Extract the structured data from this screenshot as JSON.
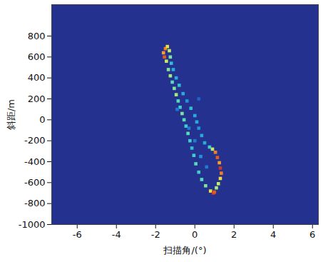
{
  "chart_data": {
    "type": "heatmap",
    "x_label": "扫描角/(°)",
    "y_label": "斜距/m",
    "xlim": [
      -7.3,
      6.3
    ],
    "ylim": [
      -1000,
      1100
    ],
    "xticks": [
      -6,
      -4,
      -2,
      0,
      2,
      4,
      6
    ],
    "yticks": [
      -1000,
      -800,
      -600,
      -400,
      -200,
      0,
      200,
      400,
      600,
      800
    ],
    "zlim": [
      0,
      1
    ],
    "grid": false,
    "cells": [
      {
        "x": -1.6,
        "y": 640,
        "z": 0.8
      },
      {
        "x": -1.55,
        "y": 600,
        "z": 0.9
      },
      {
        "x": -1.45,
        "y": 560,
        "z": 0.6
      },
      {
        "x": -1.35,
        "y": 480,
        "z": 0.5
      },
      {
        "x": -1.25,
        "y": 420,
        "z": 0.55
      },
      {
        "x": -1.15,
        "y": 360,
        "z": 0.45
      },
      {
        "x": -1.05,
        "y": 300,
        "z": 0.5
      },
      {
        "x": -0.95,
        "y": 240,
        "z": 0.55
      },
      {
        "x": -0.85,
        "y": 180,
        "z": 0.45
      },
      {
        "x": -0.75,
        "y": 120,
        "z": 0.4
      },
      {
        "x": -0.65,
        "y": 60,
        "z": 0.5
      },
      {
        "x": -0.55,
        "y": 0,
        "z": 0.45
      },
      {
        "x": -0.45,
        "y": -60,
        "z": 0.4
      },
      {
        "x": -0.35,
        "y": -130,
        "z": 0.45
      },
      {
        "x": -0.25,
        "y": -200,
        "z": 0.4
      },
      {
        "x": -0.15,
        "y": -270,
        "z": 0.35
      },
      {
        "x": -0.05,
        "y": -340,
        "z": 0.4
      },
      {
        "x": 0.05,
        "y": -420,
        "z": 0.45
      },
      {
        "x": 0.2,
        "y": -500,
        "z": 0.4
      },
      {
        "x": 0.35,
        "y": -570,
        "z": 0.45
      },
      {
        "x": 0.55,
        "y": -630,
        "z": 0.5
      },
      {
        "x": 0.8,
        "y": -680,
        "z": 0.7
      },
      {
        "x": 0.95,
        "y": -700,
        "z": 0.95
      },
      {
        "x": -1.5,
        "y": 680,
        "z": 0.85
      },
      {
        "x": -1.4,
        "y": 700,
        "z": 0.7
      },
      {
        "x": -1.3,
        "y": 660,
        "z": 0.6
      },
      {
        "x": -1.25,
        "y": 600,
        "z": 0.5
      },
      {
        "x": -1.2,
        "y": 540,
        "z": 0.35
      },
      {
        "x": -1.1,
        "y": 480,
        "z": 0.3
      },
      {
        "x": -0.95,
        "y": 400,
        "z": 0.3
      },
      {
        "x": -0.8,
        "y": 330,
        "z": 0.35
      },
      {
        "x": -0.6,
        "y": 250,
        "z": 0.3
      },
      {
        "x": -0.4,
        "y": 180,
        "z": 0.25
      },
      {
        "x": -0.2,
        "y": 110,
        "z": 0.35
      },
      {
        "x": 0,
        "y": 40,
        "z": 0.3
      },
      {
        "x": 0.1,
        "y": -20,
        "z": 0.3
      },
      {
        "x": 0.2,
        "y": -80,
        "z": 0.25
      },
      {
        "x": 0.35,
        "y": -150,
        "z": 0.3
      },
      {
        "x": 0.5,
        "y": -220,
        "z": 0.3
      },
      {
        "x": 0.75,
        "y": -260,
        "z": 0.4
      },
      {
        "x": 0.9,
        "y": -280,
        "z": 0.6
      },
      {
        "x": 1.05,
        "y": -310,
        "z": 0.85
      },
      {
        "x": 1.15,
        "y": -360,
        "z": 0.9
      },
      {
        "x": 1.25,
        "y": -410,
        "z": 0.8
      },
      {
        "x": 1.3,
        "y": -460,
        "z": 0.95
      },
      {
        "x": 1.35,
        "y": -510,
        "z": 0.85
      },
      {
        "x": 1.3,
        "y": -560,
        "z": 0.7
      },
      {
        "x": 1.2,
        "y": -610,
        "z": 0.6
      },
      {
        "x": 1.1,
        "y": -650,
        "z": 0.55
      },
      {
        "x": 1.0,
        "y": -690,
        "z": 0.9
      },
      {
        "x": -0.3,
        "y": -80,
        "z": 0.2
      },
      {
        "x": 0,
        "y": -200,
        "z": 0.2
      },
      {
        "x": 0.3,
        "y": -350,
        "z": 0.25
      },
      {
        "x": 0.6,
        "y": -450,
        "z": 0.2
      },
      {
        "x": -0.9,
        "y": 100,
        "z": 0.2
      },
      {
        "x": 0.2,
        "y": 200,
        "z": 0.15
      }
    ]
  }
}
